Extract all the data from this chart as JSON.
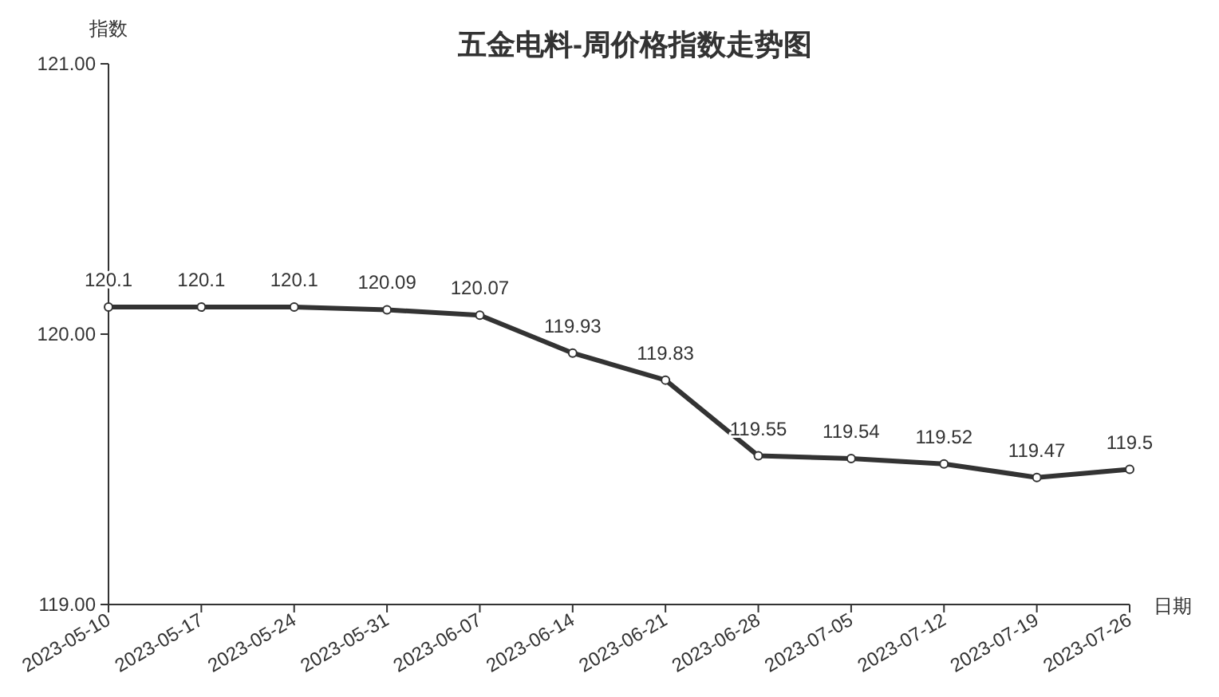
{
  "chart_data": {
    "type": "line",
    "title": "五金电料-周价格指数走势图",
    "xlabel": "日期",
    "ylabel": "指数",
    "categories": [
      "2023-05-10",
      "2023-05-17",
      "2023-05-24",
      "2023-05-31",
      "2023-06-07",
      "2023-06-14",
      "2023-06-21",
      "2023-06-28",
      "2023-07-05",
      "2023-07-12",
      "2023-07-19",
      "2023-07-26"
    ],
    "values": [
      120.1,
      120.1,
      120.1,
      120.09,
      120.07,
      119.93,
      119.83,
      119.55,
      119.54,
      119.52,
      119.47,
      119.5
    ],
    "color": "#333333",
    "ylim": [
      119,
      121
    ],
    "yticks": [
      {
        "value": 119,
        "label": "119.00"
      },
      {
        "value": 120,
        "label": "120.00"
      },
      {
        "value": 121,
        "label": "121.00"
      }
    ],
    "data_labels": true,
    "marker": "circle",
    "line_style": "solid"
  }
}
